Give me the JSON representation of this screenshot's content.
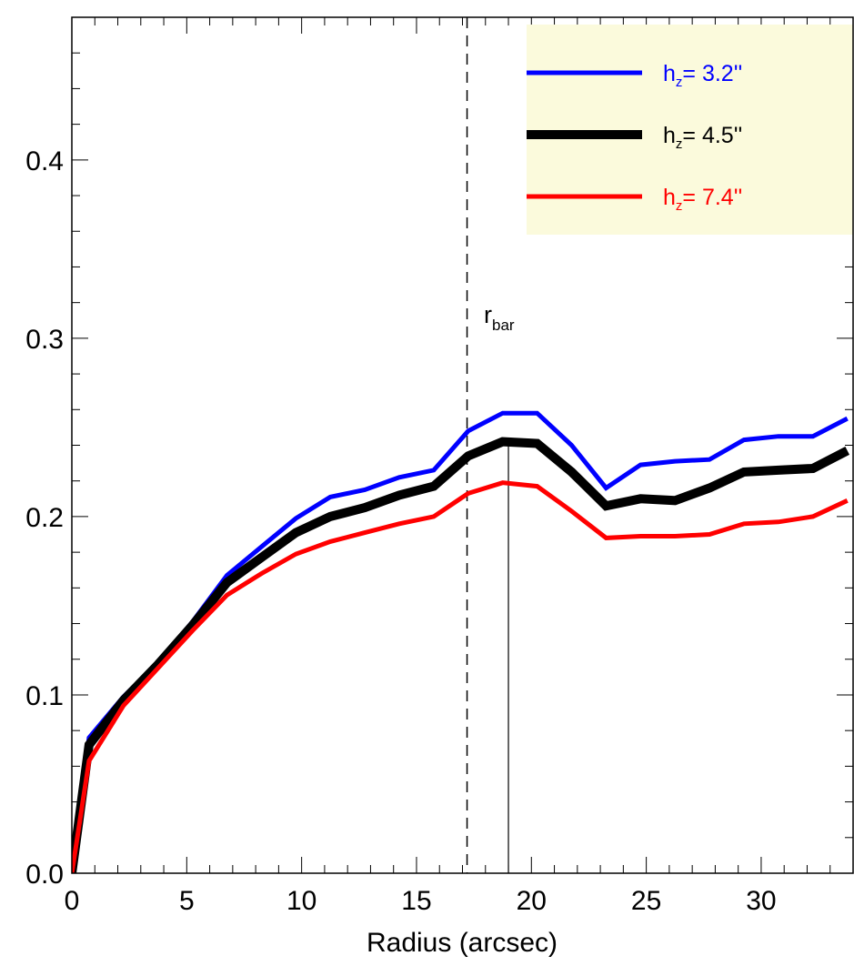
{
  "chart_data": {
    "type": "line",
    "title": "",
    "xlabel": "Radius (arcsec)",
    "ylabel": "",
    "xlim": [
      0,
      34
    ],
    "ylim": [
      0,
      0.48
    ],
    "xticks": [
      0,
      5,
      10,
      15,
      20,
      25,
      30
    ],
    "xtick_labels": [
      "0",
      "5",
      "10",
      "15",
      "20",
      "25",
      "30"
    ],
    "yticks": [
      0.0,
      0.1,
      0.2,
      0.3,
      0.4
    ],
    "ytick_labels": [
      "0.0",
      "0.1",
      "0.2",
      "0.3",
      "0.4"
    ],
    "grid": false,
    "legend_position": "top-right",
    "legend_background": "#fbfadc",
    "x": [
      0,
      0.75,
      2.25,
      3.75,
      5.25,
      6.75,
      8.25,
      9.75,
      11.25,
      12.75,
      14.25,
      15.75,
      17.25,
      18.75,
      20.25,
      21.75,
      23.25,
      24.75,
      26.25,
      27.75,
      29.25,
      30.75,
      32.25,
      33.75
    ],
    "series": [
      {
        "name_prefix": "h",
        "name_sub": "z",
        "name_value": "=   3.2''",
        "color": "#0000ff",
        "line_width": 5,
        "values": [
          0.0,
          0.076,
          0.099,
          0.118,
          0.141,
          0.167,
          0.183,
          0.199,
          0.211,
          0.215,
          0.222,
          0.226,
          0.248,
          0.258,
          0.258,
          0.24,
          0.216,
          0.229,
          0.231,
          0.232,
          0.243,
          0.245,
          0.245,
          0.255
        ]
      },
      {
        "name_prefix": "h",
        "name_sub": "z",
        "name_value": "=   4.5''",
        "color": "#000000",
        "line_width": 10,
        "values": [
          0.0,
          0.072,
          0.097,
          0.117,
          0.139,
          0.163,
          0.177,
          0.191,
          0.2,
          0.205,
          0.212,
          0.217,
          0.234,
          0.242,
          0.241,
          0.225,
          0.206,
          0.21,
          0.209,
          0.216,
          0.225,
          0.226,
          0.227,
          0.237
        ]
      },
      {
        "name_prefix": "h",
        "name_sub": "z",
        "name_value": "=   7.4''",
        "color": "#ff0000",
        "line_width": 5,
        "values": [
          0.0,
          0.063,
          0.094,
          0.115,
          0.136,
          0.156,
          0.168,
          0.179,
          0.186,
          0.191,
          0.196,
          0.2,
          0.213,
          0.219,
          0.217,
          0.203,
          0.188,
          0.189,
          0.189,
          0.19,
          0.196,
          0.197,
          0.2,
          0.209
        ]
      }
    ],
    "annotations": {
      "dashed_line_x": 17.2,
      "solid_line_x": 19.0,
      "solid_line_top_y": 0.24,
      "rbar_label_main": "r",
      "rbar_label_sub": "bar"
    }
  }
}
